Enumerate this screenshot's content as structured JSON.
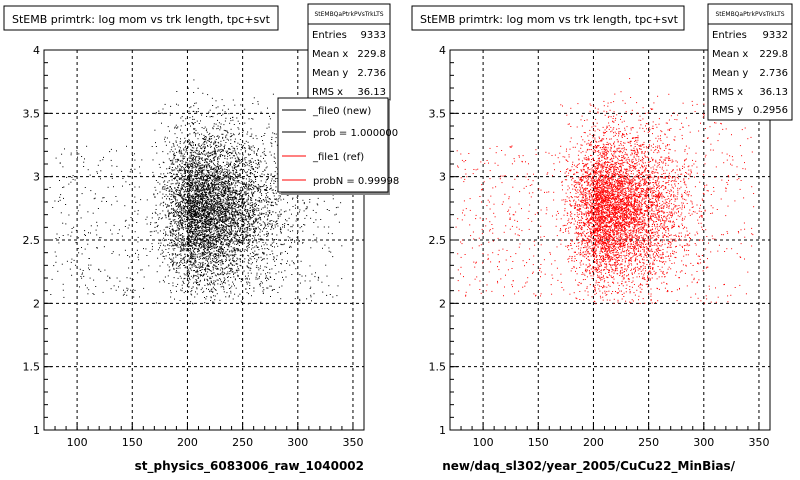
{
  "chart_data": [
    {
      "type": "scatter",
      "title": "StEMB primtrk: log mom vs trk length, tpc+svt",
      "xlabel": "st_physics_6083006_raw_1040002",
      "ylabel": "",
      "xlim": [
        70,
        360
      ],
      "ylim": [
        1,
        4
      ],
      "xticks": [
        "100",
        "150",
        "200",
        "250",
        "300",
        "350"
      ],
      "yticks": [
        "1",
        "1.5",
        "2",
        "2.5",
        "3",
        "3.5",
        "4"
      ],
      "grid": true,
      "marker_color": "#000000",
      "stats": {
        "name": "StEMBQaPtrkPVsTrkLTS",
        "rows": [
          {
            "label": "Entries",
            "value": "9333"
          },
          {
            "label": "Mean x",
            "value": "229.8"
          },
          {
            "label": "Mean y",
            "value": "2.736"
          },
          {
            "label": "RMS x",
            "value": "36.13"
          }
        ]
      },
      "legend": {
        "position": "top-right",
        "entries": [
          {
            "label": "_file0 (new)",
            "color": "#000000"
          },
          {
            "label": "prob = 1.000000",
            "color": "#000000"
          },
          {
            "label": "_file1 (ref)",
            "color": "#ff0000"
          },
          {
            "label": "probN = 0.99998",
            "color": "#ff0000"
          }
        ]
      },
      "distribution": {
        "x_mean": 229.8,
        "x_rms": 36.13,
        "y_mean": 2.736,
        "y_rms": 0.2956,
        "points": 9333,
        "x_range": [
          75,
          340
        ],
        "y_range": [
          2.0,
          3.8
        ],
        "x_low_edge": 200
      }
    },
    {
      "type": "scatter",
      "title": "StEMB primtrk: log mom vs trk length, tpc+svt",
      "xlabel": "new/daq_sl302/year_2005/CuCu22_MinBias/",
      "ylabel": "",
      "xlim": [
        70,
        360
      ],
      "ylim": [
        1,
        4
      ],
      "xticks": [
        "100",
        "150",
        "200",
        "250",
        "300",
        "350"
      ],
      "yticks": [
        "1",
        "1.5",
        "2",
        "2.5",
        "3",
        "3.5",
        "4"
      ],
      "grid": true,
      "marker_color": "#ff0000",
      "stats": {
        "name": "StEMBQaPtrkPVsTrkLTS",
        "rows": [
          {
            "label": "Entries",
            "value": "9332"
          },
          {
            "label": "Mean x",
            "value": "229.8"
          },
          {
            "label": "Mean y",
            "value": "2.736"
          },
          {
            "label": "RMS x",
            "value": "36.13"
          },
          {
            "label": "RMS y",
            "value": "0.2956"
          }
        ]
      },
      "distribution": {
        "x_mean": 229.8,
        "x_rms": 36.13,
        "y_mean": 2.736,
        "y_rms": 0.2956,
        "points": 9332,
        "x_range": [
          75,
          345
        ],
        "y_range": [
          2.0,
          3.8
        ],
        "x_low_edge": 200
      }
    }
  ]
}
